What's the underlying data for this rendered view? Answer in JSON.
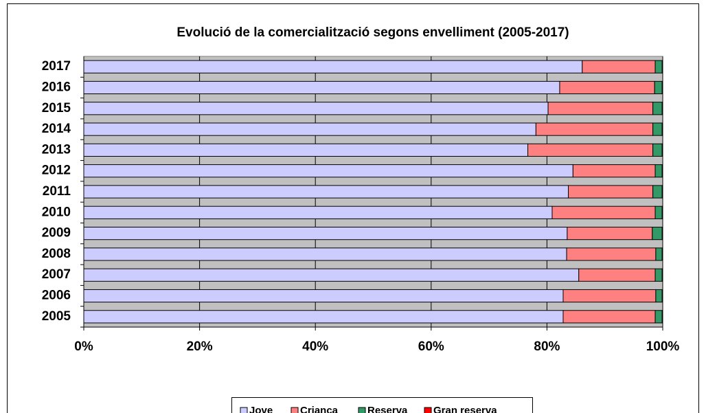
{
  "chart_data": {
    "type": "stacked_barh",
    "title": "Evolució de la comercialització segons envelliment (2005-2017)",
    "categories": [
      "2005",
      "2006",
      "2007",
      "2008",
      "2009",
      "2010",
      "2011",
      "2012",
      "2013",
      "2014",
      "2015",
      "2016",
      "2017"
    ],
    "series": [
      {
        "name": "Jove",
        "color": "#ccccff",
        "values": [
          82.8,
          82.8,
          85.5,
          83.4,
          83.5,
          80.9,
          83.7,
          84.5,
          76.7,
          78.1,
          80.2,
          82.2,
          86.1
        ]
      },
      {
        "name": "Criança",
        "color": "#ff8080",
        "values": [
          15.9,
          16.0,
          13.2,
          15.4,
          14.7,
          17.8,
          14.6,
          14.2,
          21.6,
          20.2,
          18.1,
          16.4,
          12.6
        ]
      },
      {
        "name": "Reserva",
        "color": "#339966",
        "values": [
          1.2,
          1.1,
          1.2,
          1.1,
          1.7,
          1.2,
          1.6,
          1.2,
          1.6,
          1.6,
          1.6,
          1.3,
          1.2
        ]
      },
      {
        "name": "Gran reserva",
        "color": "#ff0000",
        "values": [
          0.1,
          0.1,
          0.1,
          0.1,
          0.1,
          0.1,
          0.1,
          0.1,
          0.1,
          0.1,
          0.1,
          0.1,
          0.1
        ]
      }
    ],
    "xlim": [
      0,
      100
    ],
    "xticks": [
      {
        "value": 0,
        "label": "0%"
      },
      {
        "value": 20,
        "label": "20%"
      },
      {
        "value": 40,
        "label": "40%"
      },
      {
        "value": 60,
        "label": "60%"
      },
      {
        "value": 80,
        "label": "80%"
      },
      {
        "value": 100,
        "label": "100%"
      }
    ],
    "grid": true,
    "legend": "bottom"
  }
}
